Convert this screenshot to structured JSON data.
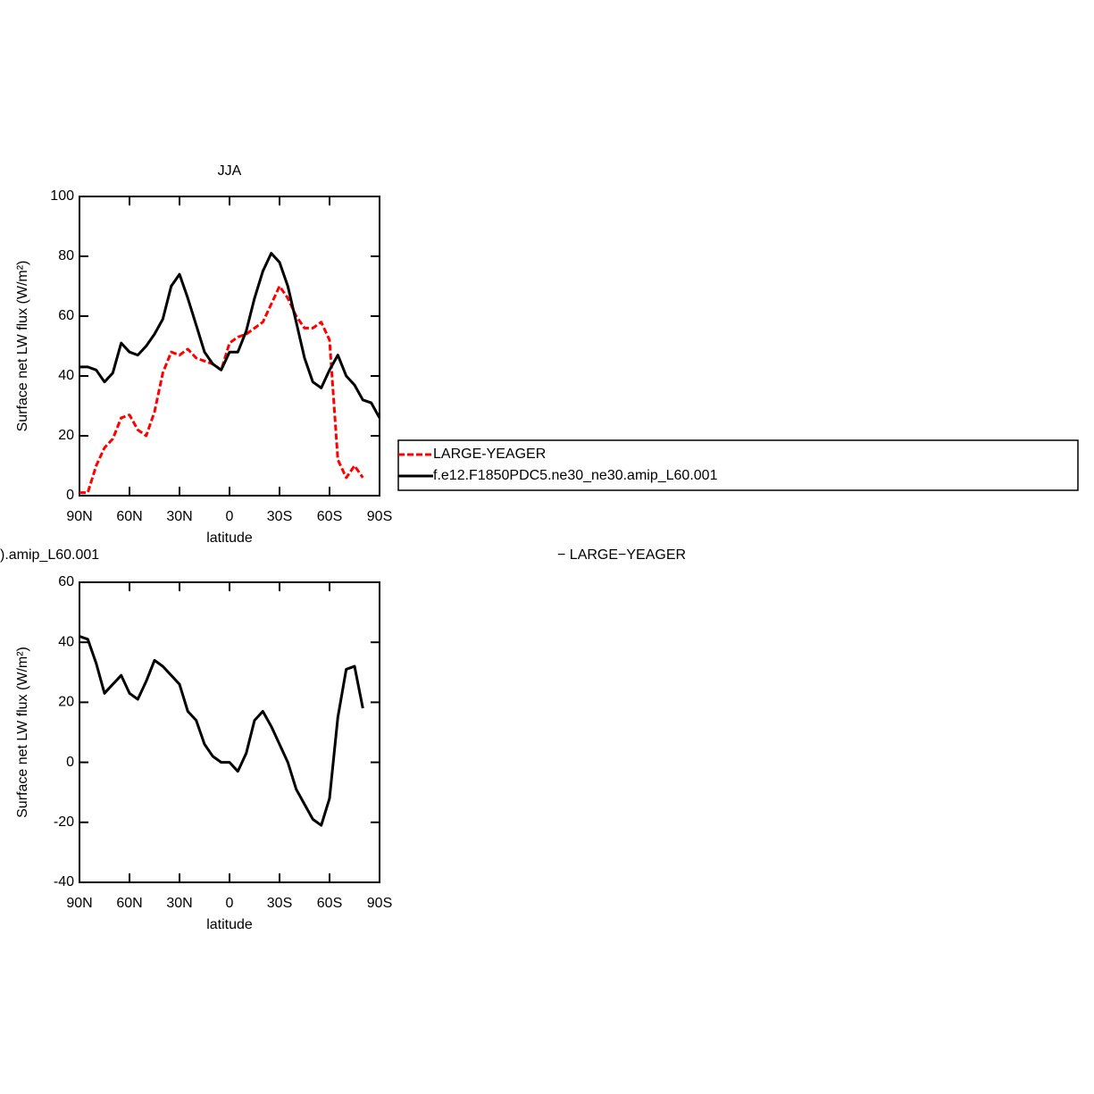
{
  "chart_data": [
    {
      "type": "line",
      "title": "JJA",
      "xlabel": "latitude",
      "ylabel": "Surface net LW flux (W/m²)",
      "x": [
        90,
        85,
        80,
        75,
        70,
        65,
        60,
        55,
        50,
        45,
        40,
        35,
        30,
        25,
        20,
        15,
        10,
        5,
        0,
        -5,
        -10,
        -15,
        -20,
        -25,
        -30,
        -35,
        -40,
        -45,
        -50,
        -55,
        -60,
        -65,
        -70,
        -75,
        -80,
        -85,
        -90
      ],
      "xlim": [
        90,
        -90
      ],
      "xticks": [
        {
          "value": 90,
          "label": "90N"
        },
        {
          "value": 60,
          "label": "60N"
        },
        {
          "value": 30,
          "label": "30N"
        },
        0,
        {
          "value": -30,
          "label": "30S"
        },
        {
          "value": -60,
          "label": "60S"
        },
        {
          "value": -90,
          "label": "90S"
        }
      ],
      "ylim": [
        0,
        100
      ],
      "yticks": [
        0,
        20,
        40,
        60,
        80,
        100
      ],
      "legend": "right",
      "series": [
        {
          "name": "LARGE-YEAGER",
          "color": "#ff0000",
          "linestyle": "dashed",
          "values": [
            1,
            1,
            10,
            16,
            19,
            26,
            27,
            22,
            20,
            28,
            41,
            48,
            47,
            49,
            46,
            45,
            44,
            42,
            51,
            53,
            54,
            56,
            58,
            64,
            70,
            66,
            60,
            56,
            56,
            58,
            52,
            12,
            6,
            10,
            6,
            null,
            null
          ]
        },
        {
          "name": "f.e12.F1850PDC5.ne30_ne30.amip_L60.001",
          "color": "#000000",
          "linestyle": "solid",
          "values": [
            43,
            43,
            42,
            38,
            41,
            51,
            48,
            47,
            50,
            54,
            59,
            70,
            74,
            66,
            57,
            48,
            44,
            42,
            48,
            48,
            55,
            66,
            75,
            81,
            78,
            70,
            58,
            46,
            38,
            36,
            42,
            47,
            40,
            37,
            32,
            31,
            26
          ]
        }
      ]
    },
    {
      "type": "line",
      "subtitle_left": ").amip_L60.001",
      "subtitle_right": "− LARGE−YEAGER",
      "xlabel": "latitude",
      "ylabel": "Surface net LW flux (W/m²)",
      "x": [
        90,
        85,
        80,
        75,
        70,
        65,
        60,
        55,
        50,
        45,
        40,
        35,
        30,
        25,
        20,
        15,
        10,
        5,
        0,
        -5,
        -10,
        -15,
        -20,
        -25,
        -30,
        -35,
        -40,
        -45,
        -50,
        -55,
        -60,
        -65,
        -70,
        -75,
        -80,
        -85,
        -90
      ],
      "xlim": [
        90,
        -90
      ],
      "xticks": [
        {
          "value": 90,
          "label": "90N"
        },
        {
          "value": 60,
          "label": "60N"
        },
        {
          "value": 30,
          "label": "30N"
        },
        0,
        {
          "value": -30,
          "label": "30S"
        },
        {
          "value": -60,
          "label": "60S"
        },
        {
          "value": -90,
          "label": "90S"
        }
      ],
      "ylim": [
        -40,
        60
      ],
      "yticks": [
        -40,
        -20,
        0,
        20,
        40,
        60
      ],
      "color": "#000000",
      "values": [
        42,
        41,
        33,
        23,
        26,
        29,
        23,
        21,
        27,
        34,
        32,
        29,
        26,
        17,
        14,
        6,
        2,
        0,
        0,
        -3,
        3,
        14,
        17,
        12,
        6,
        0,
        -9,
        -14,
        -19,
        -21,
        -12,
        15,
        31,
        32,
        18,
        null,
        null
      ]
    }
  ]
}
